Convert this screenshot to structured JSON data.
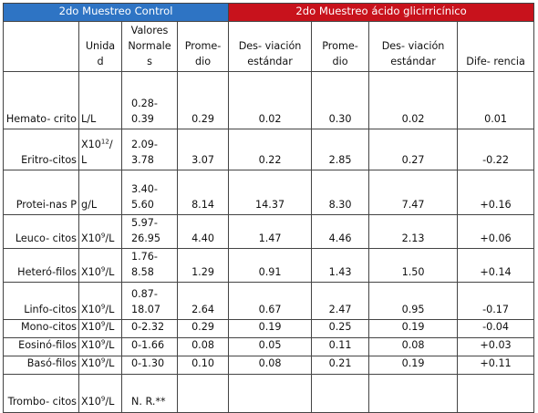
{
  "groups": {
    "control": "2do Muestreo Control",
    "acid": "2do Muestreo ácido glicirricínico"
  },
  "columns": {
    "unidad": "Unida d",
    "valores": "Valores Normale s",
    "promedio_control": "Prome- dio",
    "desv_control": "Des- viación estándar",
    "promedio_acid": "Prome- dio",
    "desv_acid": "Des- viación estándar",
    "diferencia": "Dife- rencia"
  },
  "rows": [
    {
      "param": "Hemato- crito",
      "unit_base": "L/L",
      "unit_exp": "",
      "unit_tail": "",
      "normal": "0.28- 0.39",
      "prom_c": "0.29",
      "desv_c": "0.02",
      "prom_a": "0.30",
      "desv_a": "0.02",
      "dif": "0.01"
    },
    {
      "param": "Eritro-citos",
      "unit_base": "X10",
      "unit_exp": "12",
      "unit_tail": "/ L",
      "normal": "2.09- 3.78",
      "prom_c": "3.07",
      "desv_c": "0.22",
      "prom_a": "2.85",
      "desv_a": "0.27",
      "dif": "-0.22"
    },
    {
      "param": "Protei-nas P",
      "unit_base": "g/L",
      "unit_exp": "",
      "unit_tail": "",
      "normal": "3.40- 5.60",
      "prom_c": "8.14",
      "desv_c": "14.37",
      "prom_a": "8.30",
      "desv_a": "7.47",
      "dif": "+0.16"
    },
    {
      "param": "Leuco- citos",
      "unit_base": "X10",
      "unit_exp": "9",
      "unit_tail": "/L",
      "normal": "5.97- 26.95",
      "prom_c": "4.40",
      "desv_c": "1.47",
      "prom_a": "4.46",
      "desv_a": "2.13",
      "dif": "+0.06"
    },
    {
      "param": "Heteró-filos",
      "unit_base": "X10",
      "unit_exp": "9",
      "unit_tail": "/L",
      "normal": "1.76- 8.58",
      "prom_c": "1.29",
      "desv_c": "0.91",
      "prom_a": "1.43",
      "desv_a": "1.50",
      "dif": "+0.14"
    },
    {
      "param": "Linfo-citos",
      "unit_base": "X10",
      "unit_exp": "9",
      "unit_tail": "/L",
      "normal": "0.87- 18.07",
      "prom_c": "2.64",
      "desv_c": "0.67",
      "prom_a": "2.47",
      "desv_a": "0.95",
      "dif": "-0.17"
    },
    {
      "param": "Mono-citos",
      "unit_base": "X10",
      "unit_exp": "9",
      "unit_tail": "/L",
      "normal": "0-2.32",
      "prom_c": "0.29",
      "desv_c": "0.19",
      "prom_a": "0.25",
      "desv_a": "0.19",
      "dif": "-0.04"
    },
    {
      "param": "Eosinó-filos",
      "unit_base": "X10",
      "unit_exp": "9",
      "unit_tail": "/L",
      "normal": "0-1.66",
      "prom_c": "0.08",
      "desv_c": "0.05",
      "prom_a": "0.11",
      "desv_a": "0.08",
      "dif": "+0.03"
    },
    {
      "param": "Basó-filos",
      "unit_base": "X10",
      "unit_exp": "9",
      "unit_tail": "/L",
      "normal": "0-1.30",
      "prom_c": "0.10",
      "desv_c": "0.08",
      "prom_a": "0.21",
      "desv_a": "0.19",
      "dif": "+0.11"
    },
    {
      "param": "Trombo- citos",
      "unit_base": "X10",
      "unit_exp": "9",
      "unit_tail": "/L",
      "normal": "N. R.**",
      "prom_c": "",
      "desv_c": "",
      "prom_a": "",
      "desv_a": "",
      "dif": ""
    }
  ],
  "colors": {
    "control_header": "#2e74c4",
    "acid_header": "#c8121c"
  }
}
